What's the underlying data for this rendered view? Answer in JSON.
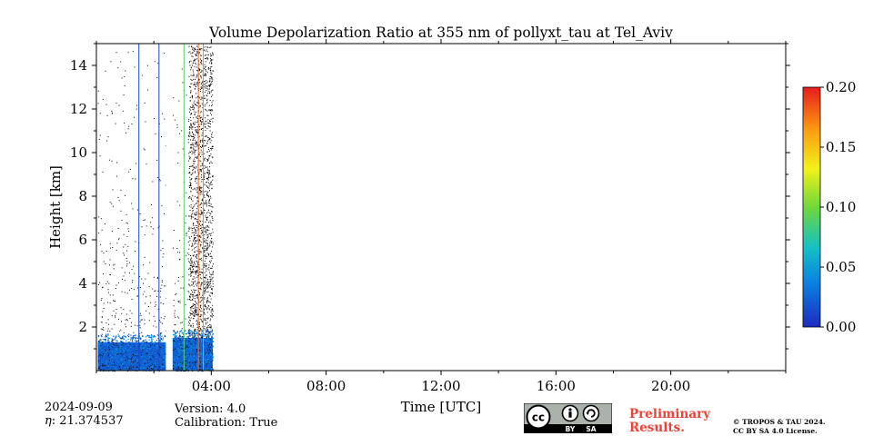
{
  "chart_data": {
    "type": "heatmap",
    "title": "Volume Depolarization Ratio at 355 nm of pollyxt_tau at Tel_Aviv",
    "xlabel": "Time [UTC]",
    "ylabel": "Height [km]",
    "xlim_hours": [
      0,
      24
    ],
    "ylim_km": [
      0,
      15
    ],
    "x_ticks": [
      {
        "hour": 4,
        "label": "04:00"
      },
      {
        "hour": 8,
        "label": "08:00"
      },
      {
        "hour": 12,
        "label": "12:00"
      },
      {
        "hour": 16,
        "label": "16:00"
      },
      {
        "hour": 20,
        "label": "20:00"
      }
    ],
    "x_minor_hours": [
      0,
      2,
      6,
      10,
      14,
      18,
      22,
      24
    ],
    "y_ticks": [
      {
        "km": 2,
        "label": "2"
      },
      {
        "km": 4,
        "label": "4"
      },
      {
        "km": 6,
        "label": "6"
      },
      {
        "km": 8,
        "label": "8"
      },
      {
        "km": 10,
        "label": "10"
      },
      {
        "km": 12,
        "label": "12"
      },
      {
        "km": 14,
        "label": "14"
      }
    ],
    "y_minor_km": [
      1,
      3,
      5,
      7,
      9,
      11,
      13,
      15
    ],
    "colorbar": {
      "range": [
        0.0,
        0.2
      ],
      "ticks": [
        {
          "value": 0.0,
          "label": "0.00"
        },
        {
          "value": 0.05,
          "label": "0.05"
        },
        {
          "value": 0.1,
          "label": "0.10"
        },
        {
          "value": 0.15,
          "label": "0.15"
        },
        {
          "value": 0.2,
          "label": "0.20"
        }
      ],
      "colormap": [
        "#1d2bbd",
        "#0a7fe0",
        "#15c0c7",
        "#6fd83a",
        "#f2f21a",
        "#fb9d12",
        "#e81b1b"
      ]
    },
    "data_time_range_hours": [
      0.0,
      4.05
    ],
    "gap_hours": [
      [
        2.42,
        2.65
      ]
    ],
    "boundary_layer": [
      {
        "start": 0.05,
        "end": 2.42,
        "top_km": 1.3,
        "dominant_value": 0.02
      },
      {
        "start": 2.65,
        "end": 4.05,
        "top_km": 1.5,
        "dominant_value": 0.02
      }
    ],
    "profile_lines": [
      {
        "hour": 1.48,
        "top_km": 15,
        "value": 0.01
      },
      {
        "hour": 2.18,
        "top_km": 15,
        "value": 0.01
      },
      {
        "hour": 3.05,
        "top_km": 15,
        "value": 0.09
      },
      {
        "hour": 3.55,
        "top_km": 15,
        "value": 0.18
      },
      {
        "hour": 3.72,
        "top_km": 15,
        "value": 0.17
      }
    ]
  },
  "footer": {
    "date": "2024-09-09",
    "eta_label": "η",
    "eta_value": ": 21.374537",
    "version": "Version: 4.0",
    "calibration": "Calibration: True",
    "preliminary_line1": "Preliminary",
    "preliminary_line2": "Results.",
    "copyright_line1": "© TROPOS & TAU 2024.",
    "copyright_line2": "CC BY SA 4.0 License.",
    "license_badge_text": "cc",
    "license_by": "BY",
    "license_sa": "SA"
  }
}
